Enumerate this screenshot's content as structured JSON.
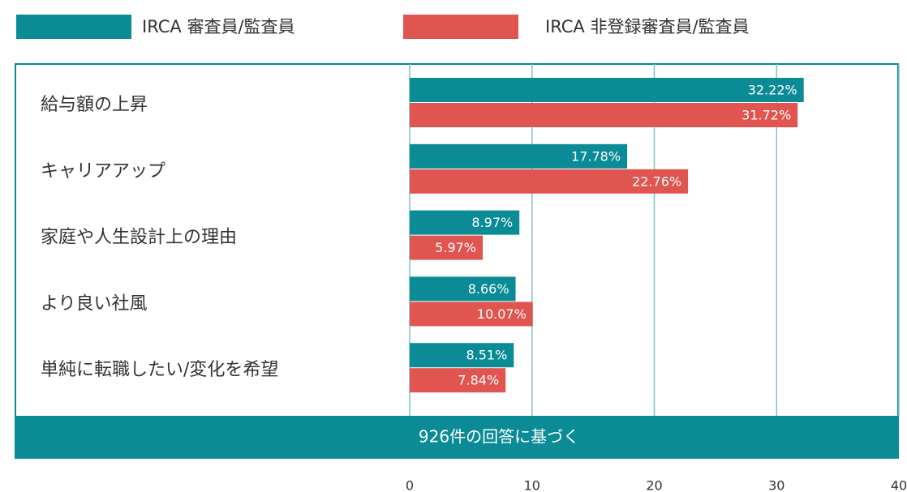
{
  "chart_data": {
    "type": "bar",
    "orientation": "horizontal",
    "categories": [
      "給与額の上昇",
      "キャリアアップ",
      "家庭や人生設計上の理由",
      "より良い社風",
      "単純に転職したい/変化を希望"
    ],
    "series": [
      {
        "name": "IRCA 審査員/監査員",
        "color": "#0b8b96",
        "values": [
          32.22,
          17.78,
          8.97,
          8.66,
          8.51
        ],
        "value_labels": [
          "32.22%",
          "17.78%",
          "8.97%",
          "8.66%",
          "8.51%"
        ]
      },
      {
        "name": "IRCA 非登録審査員/監査員",
        "color": "#e0554f",
        "values": [
          31.72,
          22.76,
          5.97,
          10.07,
          7.84
        ],
        "value_labels": [
          "31.72%",
          "22.76%",
          "5.97%",
          "10.07%",
          "7.84%"
        ]
      }
    ],
    "note": "926件の回答に基づく",
    "xlim": [
      0,
      40
    ],
    "xticks": [
      0,
      10,
      20,
      30,
      40
    ],
    "grid": true
  }
}
